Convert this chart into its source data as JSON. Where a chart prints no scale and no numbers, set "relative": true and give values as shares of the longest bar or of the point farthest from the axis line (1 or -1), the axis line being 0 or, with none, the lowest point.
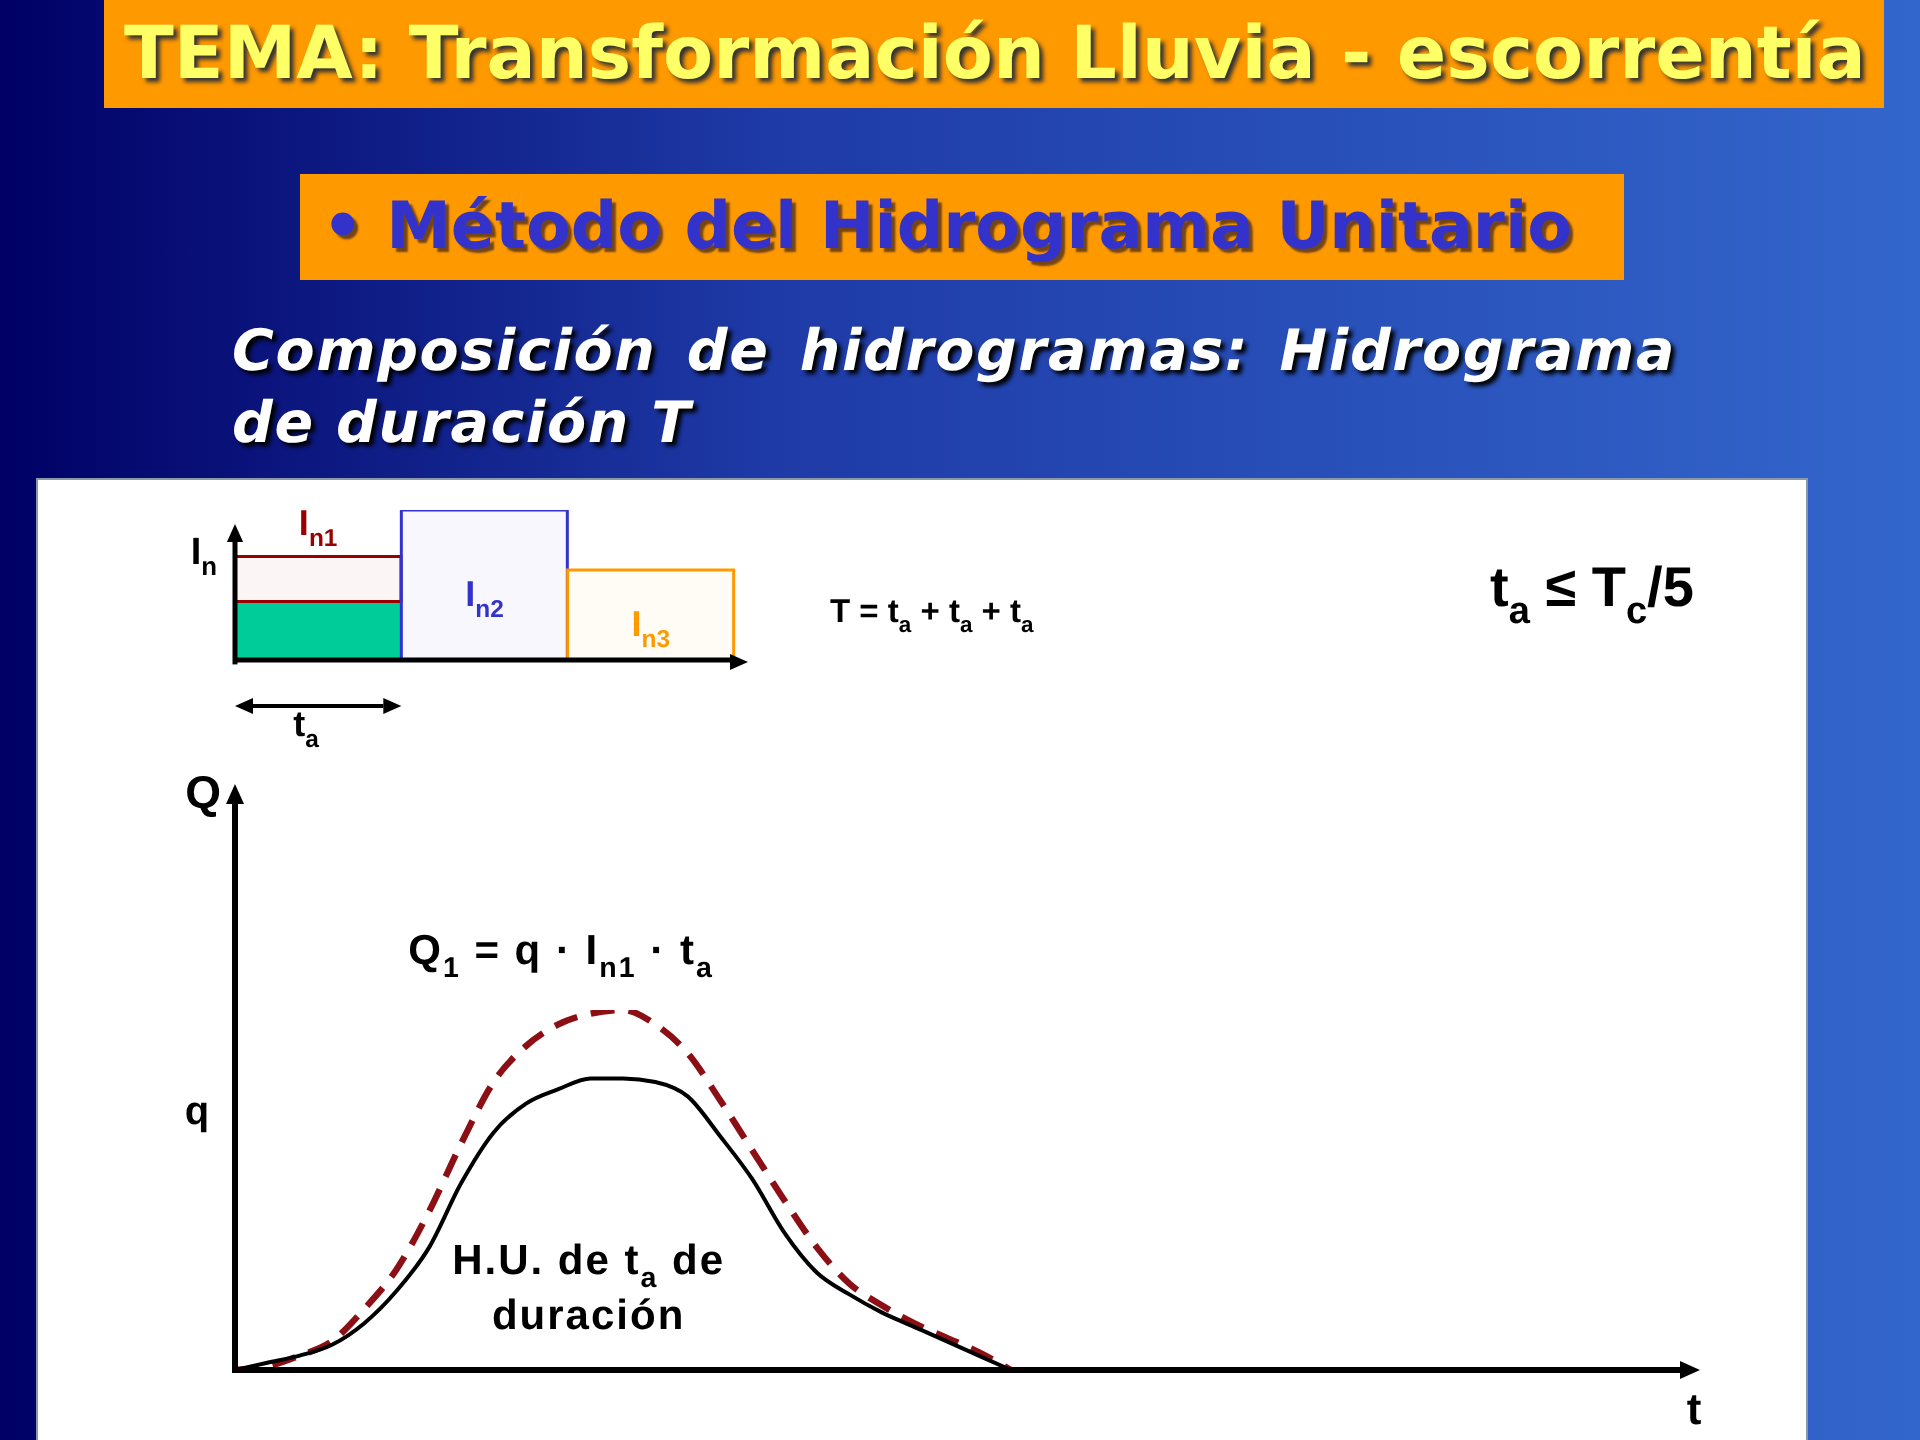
{
  "chart_data": [
    {
      "type": "bar",
      "title": "TEMA: Transformación Lluvia - escorrentía",
      "subtitle": "• Método del Hidrograma Unitario",
      "annotations": [
        "Composición de hidrogramas: Hidrograma de duración T",
        "T = t$_{a}$ + t$_{a}$ + t$_{a}$",
        "t$_{a}$ ≤ T$_{c}$/5",
        "t$_{a}$"
      ],
      "ylabel": "I$_{n}$",
      "categories": [
        null,
        null,
        null
      ],
      "relative": true,
      "stacked": true,
      "series": [
        {
          "color": "#00cc99",
          "values": [
            0.39,
            null,
            null
          ]
        },
        {
          "name": "I$_{n1}$",
          "color": "#990000",
          "values": [
            0.3,
            null,
            null
          ]
        },
        {
          "name": "I$_{n2}$",
          "color": "#3333cc",
          "values": [
            null,
            1,
            null
          ]
        },
        {
          "name": "I$_{n3}$",
          "color": "#ff9900",
          "values": [
            null,
            null,
            0.6
          ]
        }
      ]
    },
    {
      "type": "line",
      "xlabel": "t",
      "ylabel": "Q",
      "annotations": [
        "q"
      ],
      "categories": [
        null,
        null,
        null,
        null,
        null,
        null,
        null,
        null,
        null,
        null,
        null,
        null,
        null,
        null,
        null,
        null,
        null,
        null,
        null,
        null,
        null,
        null,
        null,
        null,
        null,
        null,
        null,
        null,
        null,
        null,
        null,
        null,
        null,
        null,
        null,
        null,
        null,
        null,
        null,
        null,
        null,
        null,
        null,
        null,
        null,
        null
      ],
      "relative": true,
      "marker": "none",
      "series": [
        {
          "name": "Q$_{1}$ = q · I$_{n1}$ · t$_{a}$",
          "color": "#8b0f14",
          "line_style": "dashed",
          "values": [
            0,
            0.01,
            0.04,
            0.08,
            0.17,
            0.28,
            0.44,
            0.63,
            0.8,
            0.9,
            0.96,
            0.99,
            1,
            0.96,
            0.88,
            0.75,
            0.61,
            0.47,
            0.34,
            0.24,
            0.18,
            0.13,
            0.09,
            0.05,
            0,
            null,
            null,
            null,
            null,
            null,
            null,
            null,
            null,
            null,
            null,
            null,
            null,
            null,
            null,
            null,
            null,
            null,
            null,
            null,
            null,
            null
          ]
        },
        {
          "name": "H.U. de t$_{a}$ de duración",
          "color": "#000000",
          "line_style": "solid",
          "values": [
            0,
            0.02,
            0.04,
            0.07,
            0.13,
            0.22,
            0.34,
            0.52,
            0.66,
            0.74,
            0.78,
            0.81,
            0.81,
            0.8,
            0.76,
            0.65,
            0.53,
            0.38,
            0.27,
            0.21,
            0.16,
            0.12,
            0.08,
            0.04,
            0,
            null,
            null,
            null,
            null,
            null,
            null,
            null,
            null,
            null,
            null,
            null,
            null,
            null,
            null,
            null,
            null,
            null,
            null,
            null,
            null,
            null
          ]
        }
      ]
    }
  ]
}
